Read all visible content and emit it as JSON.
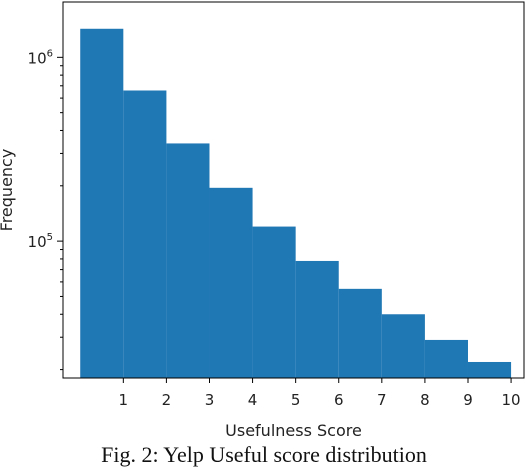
{
  "chart_data": {
    "type": "bar",
    "title": "",
    "xlabel": "Usefulness Score",
    "ylabel": "Frequency",
    "y_scale": "log",
    "ylim": [
      18000,
      2000000
    ],
    "xlim": [
      -0.4,
      10.3
    ],
    "bin_edges": [
      0,
      1,
      2,
      3,
      4,
      5,
      6,
      7,
      8,
      9,
      10
    ],
    "categories": [
      "0-1",
      "1-2",
      "2-3",
      "3-4",
      "4-5",
      "5-6",
      "6-7",
      "7-8",
      "8-9",
      "9-10"
    ],
    "values": [
      1430000,
      660000,
      340000,
      195000,
      120000,
      78000,
      55000,
      40000,
      29000,
      22000
    ],
    "x_ticks": [
      1,
      2,
      3,
      4,
      5,
      6,
      7,
      8,
      9,
      10
    ],
    "x_tick_labels": [
      "1",
      "2",
      "3",
      "4",
      "5",
      "6",
      "7",
      "8",
      "9",
      "10"
    ],
    "y_ticks_major": [
      {
        "value": 1000000,
        "base": "10",
        "exp": "6"
      },
      {
        "value": 100000,
        "base": "10",
        "exp": "5"
      }
    ],
    "y_ticks_minor": [
      20000,
      30000,
      40000,
      50000,
      60000,
      70000,
      80000,
      90000,
      200000,
      300000,
      400000,
      500000,
      600000,
      700000,
      800000,
      900000
    ],
    "bar_color": "#1f77b4",
    "grid": false
  },
  "caption": "Fig. 2: Yelp Useful score distribution"
}
